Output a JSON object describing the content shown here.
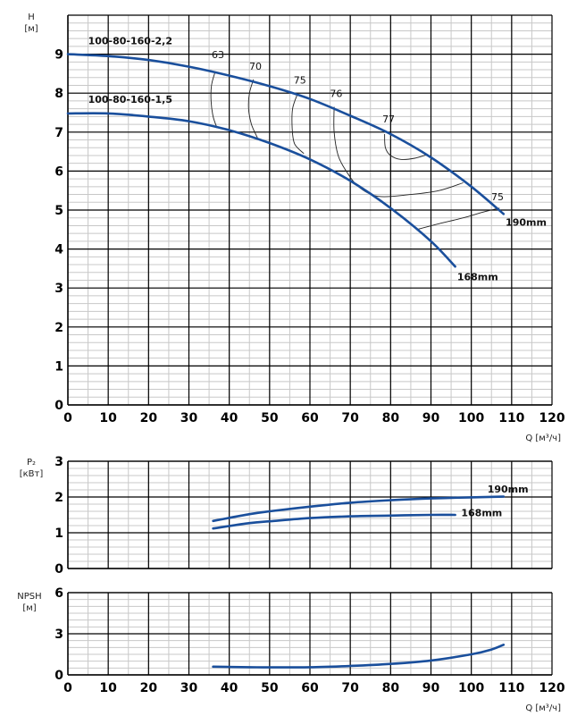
{
  "chart_data": [
    {
      "type": "line",
      "id": "head",
      "ylabel": [
        "H",
        "[м]"
      ],
      "xlabel": "Q [м³/ч]",
      "xlim": [
        0,
        120
      ],
      "xticks": [
        0,
        10,
        20,
        30,
        40,
        50,
        60,
        70,
        80,
        90,
        100,
        110,
        120
      ],
      "ylim": [
        0,
        10
      ],
      "yticks": [
        0,
        1,
        2,
        3,
        4,
        5,
        6,
        7,
        8,
        9
      ],
      "x_minor": 5,
      "y_minor": 0.2,
      "grid": true,
      "series": [
        {
          "name": "190mm",
          "model": "100-80-160-2,2",
          "x": [
            0,
            10,
            20,
            30,
            40,
            50,
            60,
            70,
            80,
            90,
            100,
            108
          ],
          "y": [
            9.0,
            8.95,
            8.85,
            8.68,
            8.45,
            8.18,
            7.85,
            7.42,
            6.95,
            6.35,
            5.6,
            4.9
          ]
        },
        {
          "name": "168mm",
          "model": "100-80-160-1,5",
          "x": [
            0,
            10,
            20,
            30,
            40,
            50,
            60,
            70,
            80,
            90,
            96
          ],
          "y": [
            7.48,
            7.48,
            7.4,
            7.28,
            7.05,
            6.72,
            6.3,
            5.75,
            5.05,
            4.2,
            3.55
          ]
        }
      ],
      "efficiency_curves": [
        {
          "label": "63",
          "x": [
            36.5,
            35.6,
            35.5,
            36.0,
            37.0
          ],
          "y": [
            8.55,
            8.2,
            7.8,
            7.4,
            7.1
          ],
          "label_at": [
            37.2,
            8.9
          ]
        },
        {
          "label": "70",
          "x": [
            46.0,
            45.0,
            44.8,
            45.5,
            47.0
          ],
          "y": [
            8.35,
            8.0,
            7.6,
            7.2,
            6.85
          ],
          "label_at": [
            46.5,
            8.6
          ]
        },
        {
          "label": "75",
          "x": [
            57.0,
            55.7,
            55.6,
            56.2,
            58.5
          ],
          "y": [
            8.0,
            7.6,
            7.1,
            6.7,
            6.45
          ],
          "label_at": [
            57.5,
            8.25
          ]
        },
        {
          "label": "76",
          "x": [
            66.0,
            66.0,
            67.0,
            69.0,
            72.0,
            77.0,
            85.0,
            92.0,
            98.0
          ],
          "y": [
            7.65,
            7.0,
            6.4,
            6.0,
            5.6,
            5.35,
            5.4,
            5.5,
            5.7
          ],
          "label_at": [
            66.5,
            7.9
          ]
        },
        {
          "label": "77",
          "x": [
            78.5,
            78.7,
            80.0,
            82.5,
            86.0,
            89.0
          ],
          "y": [
            6.95,
            6.6,
            6.4,
            6.3,
            6.33,
            6.42
          ],
          "label_at": [
            79.5,
            7.25
          ]
        },
        {
          "label": "75",
          "x": [
            86.5,
            92.0,
            98.0,
            103.0,
            107.0
          ],
          "y": [
            4.5,
            4.65,
            4.8,
            4.95,
            5.05
          ],
          "label_at": [
            106.5,
            5.25
          ]
        }
      ],
      "curve_labels": [
        {
          "text": "100-80-160-2,2",
          "at": [
            5,
            9.25
          ]
        },
        {
          "text": "100-80-160-1,5",
          "at": [
            5,
            7.75
          ]
        },
        {
          "text": "190mm",
          "at": [
            108.5,
            4.6
          ]
        },
        {
          "text": "168mm",
          "at": [
            96.5,
            3.2
          ]
        }
      ]
    },
    {
      "type": "line",
      "id": "power",
      "ylabel": [
        "P₂",
        "[кВт]"
      ],
      "xlim": [
        0,
        120
      ],
      "xticks": [
        0,
        10,
        20,
        30,
        40,
        50,
        60,
        70,
        80,
        90,
        100,
        110,
        120
      ],
      "ylim": [
        0,
        3
      ],
      "yticks": [
        0,
        1,
        2,
        3
      ],
      "x_minor": 5,
      "y_minor": 0.2,
      "grid": true,
      "series": [
        {
          "name": "190mm",
          "x": [
            36,
            45,
            50,
            60,
            70,
            80,
            90,
            100,
            108
          ],
          "y": [
            1.33,
            1.52,
            1.6,
            1.73,
            1.84,
            1.91,
            1.96,
            1.99,
            2.01
          ]
        },
        {
          "name": "168mm",
          "x": [
            36,
            45,
            50,
            60,
            70,
            80,
            90,
            96
          ],
          "y": [
            1.12,
            1.27,
            1.32,
            1.41,
            1.46,
            1.48,
            1.5,
            1.5
          ]
        }
      ],
      "curve_labels": [
        {
          "text": "190mm",
          "at": [
            104,
            2.12
          ]
        },
        {
          "text": "168mm",
          "at": [
            97.5,
            1.46
          ]
        }
      ]
    },
    {
      "type": "line",
      "id": "npsh",
      "ylabel": [
        "NPSH",
        "[м]"
      ],
      "xlabel": "Q [м³/ч]",
      "xlim": [
        0,
        120
      ],
      "xticks": [
        0,
        10,
        20,
        30,
        40,
        50,
        60,
        70,
        80,
        90,
        100,
        110,
        120
      ],
      "ylim": [
        0,
        6
      ],
      "yticks": [
        0,
        3,
        6
      ],
      "x_minor": 5,
      "y_minor": 0.5,
      "grid": true,
      "series": [
        {
          "name": "NPSH",
          "x": [
            36,
            45,
            50,
            60,
            70,
            80,
            90,
            100,
            105,
            108
          ],
          "y": [
            0.6,
            0.56,
            0.55,
            0.56,
            0.65,
            0.8,
            1.05,
            1.5,
            1.85,
            2.2
          ]
        }
      ]
    }
  ],
  "colors": {
    "curve": "#1a4f9c",
    "grid_major": "#000000",
    "grid_minor": "#c8c8c8",
    "efficiency": "#222222"
  }
}
